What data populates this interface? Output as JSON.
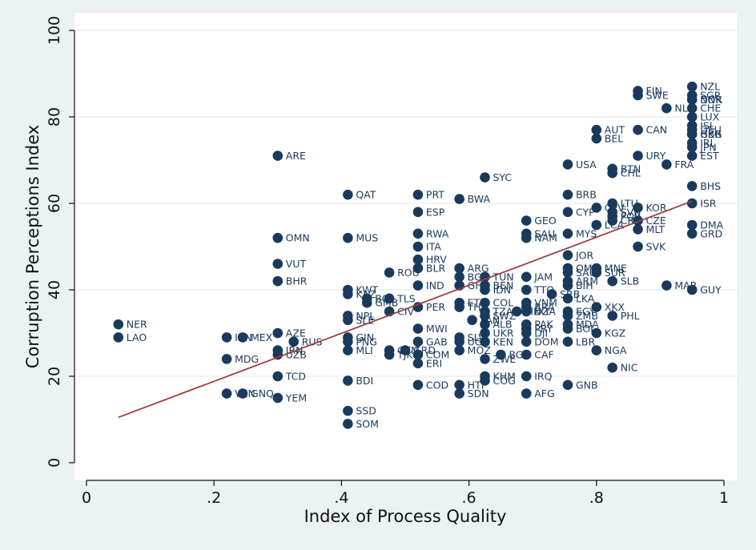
{
  "chart_data": {
    "type": "scatter",
    "title": "",
    "xlabel": "Index of Process Quality",
    "ylabel": "Corruption Perceptions Index",
    "xlim": [
      0,
      1
    ],
    "ylim": [
      0,
      100
    ],
    "x_ticks": [
      0,
      0.2,
      0.4,
      0.6,
      0.8,
      1
    ],
    "x_tick_labels": [
      "0",
      ".2",
      ".4",
      ".6",
      ".8",
      "1"
    ],
    "y_ticks": [
      0,
      20,
      40,
      60,
      80,
      100
    ],
    "y_tick_labels": [
      "0",
      "20",
      "40",
      "60",
      "80",
      "100"
    ],
    "grid": "horizontal",
    "colors": {
      "marker": "#1a3a5c",
      "fit_line": "#a03c3c",
      "plot_bg": "#ffffff",
      "outer_bg": "#eaf2f3"
    },
    "fit_line": {
      "x": [
        0.05,
        0.95
      ],
      "y": [
        10.5,
        60.5
      ]
    },
    "points": [
      {
        "label": "NER",
        "x": 0.05,
        "y": 32
      },
      {
        "label": "LAO",
        "x": 0.05,
        "y": 29
      },
      {
        "label": "MDG",
        "x": 0.22,
        "y": 24
      },
      {
        "label": "IRN",
        "x": 0.22,
        "y": 29
      },
      {
        "label": "VEN",
        "x": 0.22,
        "y": 16
      },
      {
        "label": "MEX",
        "x": 0.245,
        "y": 29
      },
      {
        "label": "GNQ",
        "x": 0.245,
        "y": 16
      },
      {
        "label": "ARE",
        "x": 0.3,
        "y": 71
      },
      {
        "label": "OMN",
        "x": 0.3,
        "y": 52
      },
      {
        "label": "VUT",
        "x": 0.3,
        "y": 46
      },
      {
        "label": "BHR",
        "x": 0.3,
        "y": 42
      },
      {
        "label": "AZE",
        "x": 0.3,
        "y": 30
      },
      {
        "label": "IRN",
        "x": 0.3,
        "y": 26
      },
      {
        "label": "UZB",
        "x": 0.3,
        "y": 25
      },
      {
        "label": "TCD",
        "x": 0.3,
        "y": 20
      },
      {
        "label": "YEM",
        "x": 0.3,
        "y": 15
      },
      {
        "label": "RUS",
        "x": 0.325,
        "y": 28
      },
      {
        "label": "QAT",
        "x": 0.41,
        "y": 62
      },
      {
        "label": "MUS",
        "x": 0.41,
        "y": 52
      },
      {
        "label": "KWT",
        "x": 0.41,
        "y": 40
      },
      {
        "label": "KAZ",
        "x": 0.41,
        "y": 39
      },
      {
        "label": "NPL",
        "x": 0.41,
        "y": 34
      },
      {
        "label": "SLE",
        "x": 0.41,
        "y": 33
      },
      {
        "label": "GIN",
        "x": 0.41,
        "y": 29
      },
      {
        "label": "PNG",
        "x": 0.41,
        "y": 28
      },
      {
        "label": "MLI",
        "x": 0.41,
        "y": 26
      },
      {
        "label": "BDI",
        "x": 0.41,
        "y": 19
      },
      {
        "label": "SSD",
        "x": 0.41,
        "y": 12
      },
      {
        "label": "SOM",
        "x": 0.41,
        "y": 9
      },
      {
        "label": "ROU",
        "x": 0.475,
        "y": 44
      },
      {
        "label": "BOL",
        "x": 0.44,
        "y": 38
      },
      {
        "label": "GMB",
        "x": 0.44,
        "y": 37
      },
      {
        "label": "TLS",
        "x": 0.475,
        "y": 38
      },
      {
        "label": "CIV",
        "x": 0.475,
        "y": 35
      },
      {
        "label": "GTM",
        "x": 0.475,
        "y": 26
      },
      {
        "label": "TJK",
        "x": 0.475,
        "y": 25
      },
      {
        "label": "PRT",
        "x": 0.52,
        "y": 62
      },
      {
        "label": "ESP",
        "x": 0.52,
        "y": 58
      },
      {
        "label": "RWA",
        "x": 0.52,
        "y": 53
      },
      {
        "label": "ITA",
        "x": 0.52,
        "y": 50
      },
      {
        "label": "HRV",
        "x": 0.52,
        "y": 47
      },
      {
        "label": "BLR",
        "x": 0.52,
        "y": 45
      },
      {
        "label": "IND",
        "x": 0.52,
        "y": 41
      },
      {
        "label": "PER",
        "x": 0.52,
        "y": 36
      },
      {
        "label": "MWI",
        "x": 0.52,
        "y": 31
      },
      {
        "label": "GAB",
        "x": 0.52,
        "y": 28
      },
      {
        "label": "GRD",
        "x": 0.5,
        "y": 26
      },
      {
        "label": "COM",
        "x": 0.52,
        "y": 25
      },
      {
        "label": "ERI",
        "x": 0.52,
        "y": 23
      },
      {
        "label": "COD",
        "x": 0.52,
        "y": 18
      },
      {
        "label": "BWA",
        "x": 0.585,
        "y": 61
      },
      {
        "label": "ARG",
        "x": 0.585,
        "y": 45
      },
      {
        "label": "BGR",
        "x": 0.585,
        "y": 43
      },
      {
        "label": "GHA",
        "x": 0.585,
        "y": 41
      },
      {
        "label": "ETH",
        "x": 0.585,
        "y": 37
      },
      {
        "label": "THA",
        "x": 0.585,
        "y": 36
      },
      {
        "label": "SLV",
        "x": 0.585,
        "y": 29
      },
      {
        "label": "UGA",
        "x": 0.585,
        "y": 28
      },
      {
        "label": "MOZ",
        "x": 0.585,
        "y": 26
      },
      {
        "label": "HTI",
        "x": 0.585,
        "y": 18
      },
      {
        "label": "SDN",
        "x": 0.585,
        "y": 16
      },
      {
        "label": "SYC",
        "x": 0.625,
        "y": 66
      },
      {
        "label": "TUN",
        "x": 0.625,
        "y": 43
      },
      {
        "label": "BEN",
        "x": 0.625,
        "y": 41
      },
      {
        "label": "IDN",
        "x": 0.625,
        "y": 40
      },
      {
        "label": "COL",
        "x": 0.625,
        "y": 37
      },
      {
        "label": "TZA",
        "x": 0.625,
        "y": 35
      },
      {
        "label": "SWZ",
        "x": 0.625,
        "y": 34
      },
      {
        "label": "ALB",
        "x": 0.625,
        "y": 32
      },
      {
        "label": "UKR",
        "x": 0.625,
        "y": 30
      },
      {
        "label": "KEN",
        "x": 0.625,
        "y": 28
      },
      {
        "label": "ZWE",
        "x": 0.625,
        "y": 24
      },
      {
        "label": "KHM",
        "x": 0.625,
        "y": 20
      },
      {
        "label": "COG",
        "x": 0.625,
        "y": 19
      },
      {
        "label": "PAN",
        "x": 0.605,
        "y": 33
      },
      {
        "label": "GEO",
        "x": 0.69,
        "y": 56
      },
      {
        "label": "SAU",
        "x": 0.69,
        "y": 53
      },
      {
        "label": "NAM",
        "x": 0.69,
        "y": 52
      },
      {
        "label": "JAM",
        "x": 0.69,
        "y": 43
      },
      {
        "label": "TTO",
        "x": 0.69,
        "y": 40
      },
      {
        "label": "VNM",
        "x": 0.69,
        "y": 37
      },
      {
        "label": "BRA",
        "x": 0.69,
        "y": 36
      },
      {
        "label": "MNG",
        "x": 0.675,
        "y": 35
      },
      {
        "label": "DZA",
        "x": 0.69,
        "y": 35
      },
      {
        "label": "PAK",
        "x": 0.69,
        "y": 32
      },
      {
        "label": "PRY",
        "x": 0.69,
        "y": 31
      },
      {
        "label": "DJI",
        "x": 0.69,
        "y": 30
      },
      {
        "label": "DOM",
        "x": 0.69,
        "y": 28
      },
      {
        "label": "BGD",
        "x": 0.65,
        "y": 25
      },
      {
        "label": "CAF",
        "x": 0.69,
        "y": 25
      },
      {
        "label": "IRQ",
        "x": 0.69,
        "y": 20
      },
      {
        "label": "AFG",
        "x": 0.69,
        "y": 16
      },
      {
        "label": "SRB",
        "x": 0.73,
        "y": 39
      },
      {
        "label": "USA",
        "x": 0.755,
        "y": 69
      },
      {
        "label": "BRB",
        "x": 0.755,
        "y": 62
      },
      {
        "label": "CYP",
        "x": 0.755,
        "y": 58
      },
      {
        "label": "MYS",
        "x": 0.755,
        "y": 53
      },
      {
        "label": "JOR",
        "x": 0.755,
        "y": 48
      },
      {
        "label": "OMN",
        "x": 0.755,
        "y": 45
      },
      {
        "label": "SAU",
        "x": 0.755,
        "y": 44
      },
      {
        "label": "ARM",
        "x": 0.755,
        "y": 42
      },
      {
        "label": "BIH",
        "x": 0.755,
        "y": 41
      },
      {
        "label": "LKA",
        "x": 0.755,
        "y": 38
      },
      {
        "label": "EGY",
        "x": 0.755,
        "y": 35
      },
      {
        "label": "ZMB",
        "x": 0.755,
        "y": 34
      },
      {
        "label": "MDA",
        "x": 0.755,
        "y": 32
      },
      {
        "label": "BOL",
        "x": 0.755,
        "y": 31
      },
      {
        "label": "LBR",
        "x": 0.755,
        "y": 28
      },
      {
        "label": "GNB",
        "x": 0.755,
        "y": 18
      },
      {
        "label": "AUT",
        "x": 0.8,
        "y": 77
      },
      {
        "label": "BEL",
        "x": 0.8,
        "y": 75
      },
      {
        "label": "CPV",
        "x": 0.8,
        "y": 59
      },
      {
        "label": "LCA",
        "x": 0.8,
        "y": 55
      },
      {
        "label": "MNE",
        "x": 0.8,
        "y": 45
      },
      {
        "label": "SUR",
        "x": 0.8,
        "y": 44
      },
      {
        "label": "XKX",
        "x": 0.8,
        "y": 36
      },
      {
        "label": "KGZ",
        "x": 0.8,
        "y": 30
      },
      {
        "label": "NGA",
        "x": 0.8,
        "y": 26
      },
      {
        "label": "BTN",
        "x": 0.825,
        "y": 68
      },
      {
        "label": "CHL",
        "x": 0.825,
        "y": 67
      },
      {
        "label": "LTU",
        "x": 0.825,
        "y": 60
      },
      {
        "label": "SVN",
        "x": 0.825,
        "y": 58
      },
      {
        "label": "POL",
        "x": 0.825,
        "y": 57
      },
      {
        "label": "CRI",
        "x": 0.825,
        "y": 56
      },
      {
        "label": "SLB",
        "x": 0.825,
        "y": 42
      },
      {
        "label": "PHL",
        "x": 0.825,
        "y": 34
      },
      {
        "label": "NIC",
        "x": 0.825,
        "y": 22
      },
      {
        "label": "FIN",
        "x": 0.865,
        "y": 86
      },
      {
        "label": "SWE",
        "x": 0.865,
        "y": 85
      },
      {
        "label": "CAN",
        "x": 0.865,
        "y": 77
      },
      {
        "label": "URY",
        "x": 0.865,
        "y": 71
      },
      {
        "label": "KOR",
        "x": 0.865,
        "y": 59
      },
      {
        "label": "CZE",
        "x": 0.865,
        "y": 56
      },
      {
        "label": "MLT",
        "x": 0.865,
        "y": 54
      },
      {
        "label": "SVK",
        "x": 0.865,
        "y": 50
      },
      {
        "label": "NLD",
        "x": 0.91,
        "y": 82
      },
      {
        "label": "FRA",
        "x": 0.91,
        "y": 69
      },
      {
        "label": "MAR",
        "x": 0.91,
        "y": 41
      },
      {
        "label": "NZL",
        "x": 0.95,
        "y": 87
      },
      {
        "label": "SGP",
        "x": 0.95,
        "y": 85
      },
      {
        "label": "NOR",
        "x": 0.95,
        "y": 84
      },
      {
        "label": "DNK",
        "x": 0.95,
        "y": 84
      },
      {
        "label": "CHE",
        "x": 0.95,
        "y": 82
      },
      {
        "label": "LUX",
        "x": 0.95,
        "y": 80
      },
      {
        "label": "ISL",
        "x": 0.95,
        "y": 78
      },
      {
        "label": "DEU",
        "x": 0.95,
        "y": 77
      },
      {
        "label": "GBR",
        "x": 0.95,
        "y": 76
      },
      {
        "label": "HKG",
        "x": 0.95,
        "y": 76
      },
      {
        "label": "IRL",
        "x": 0.95,
        "y": 74
      },
      {
        "label": "JPN",
        "x": 0.95,
        "y": 73
      },
      {
        "label": "EST",
        "x": 0.95,
        "y": 71
      },
      {
        "label": "BHS",
        "x": 0.95,
        "y": 64
      },
      {
        "label": "ISR",
        "x": 0.95,
        "y": 60
      },
      {
        "label": "DMA",
        "x": 0.95,
        "y": 55
      },
      {
        "label": "GRD",
        "x": 0.95,
        "y": 53
      },
      {
        "label": "GUY",
        "x": 0.95,
        "y": 40
      }
    ]
  }
}
